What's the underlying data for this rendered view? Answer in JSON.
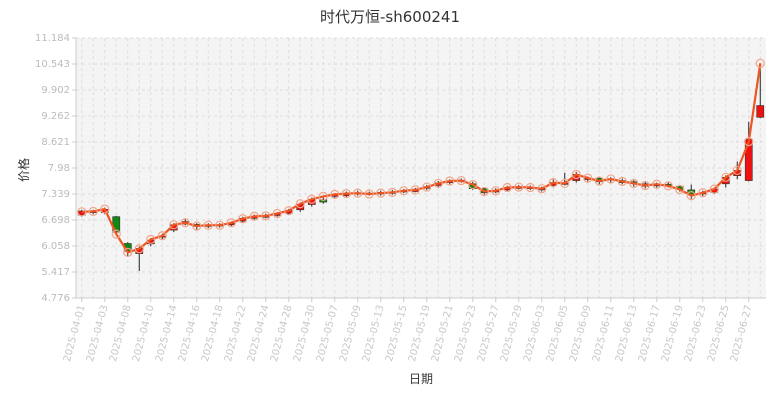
{
  "chart_data": {
    "type": "candlestick",
    "title": "时代万恒-sh600241",
    "xlabel": "日期",
    "ylabel": "价格",
    "ylim": [
      4.776,
      11.184
    ],
    "yticks": [
      "4.776",
      "5.417",
      "6.058",
      "6.698",
      "7.339",
      "7.98",
      "8.621",
      "9.262",
      "9.902",
      "10.543",
      "11.184"
    ],
    "grid": true,
    "colors": {
      "up": "#ee1111",
      "down": "#118811",
      "line": "#ee5522",
      "marker": "#f0a58a",
      "wick": "#222222",
      "grid": "#dddddd",
      "plot_bg": "#f4f4f4"
    },
    "dates": [
      "2025-04-01",
      "2025-04-02",
      "2025-04-03",
      "2025-04-07",
      "2025-04-08",
      "2025-04-09",
      "2025-04-10",
      "2025-04-11",
      "2025-04-14",
      "2025-04-15",
      "2025-04-16",
      "2025-04-17",
      "2025-04-18",
      "2025-04-21",
      "2025-04-22",
      "2025-04-23",
      "2025-04-24",
      "2025-04-25",
      "2025-04-28",
      "2025-04-29",
      "2025-04-30",
      "2025-05-06",
      "2025-05-07",
      "2025-05-08",
      "2025-05-09",
      "2025-05-12",
      "2025-05-13",
      "2025-05-14",
      "2025-05-15",
      "2025-05-16",
      "2025-05-19",
      "2025-05-20",
      "2025-05-21",
      "2025-05-22",
      "2025-05-23",
      "2025-05-26",
      "2025-05-27",
      "2025-05-28",
      "2025-05-29",
      "2025-05-30",
      "2025-06-03",
      "2025-06-04",
      "2025-06-05",
      "2025-06-06",
      "2025-06-09",
      "2025-06-10",
      "2025-06-11",
      "2025-06-12",
      "2025-06-13",
      "2025-06-16",
      "2025-06-17",
      "2025-06-18",
      "2025-06-19",
      "2025-06-20",
      "2025-06-23",
      "2025-06-24",
      "2025-06-25",
      "2025-06-26",
      "2025-06-27",
      "2025-06-30"
    ],
    "xtick_labels": [
      "2025-04-01",
      "2025-04-03",
      "2025-04-08",
      "2025-04-10",
      "2025-04-14",
      "2025-04-16",
      "2025-04-18",
      "2025-04-22",
      "2025-04-24",
      "2025-04-28",
      "2025-04-30",
      "2025-05-07",
      "2025-05-09",
      "2025-05-13",
      "2025-05-15",
      "2025-05-19",
      "2025-05-21",
      "2025-05-23",
      "2025-05-27",
      "2025-05-29",
      "2025-06-03",
      "2025-06-05",
      "2025-06-09",
      "2025-06-11",
      "2025-06-13",
      "2025-06-17",
      "2025-06-19",
      "2025-06-23",
      "2025-06-25",
      "2025-06-27"
    ],
    "open": [
      6.82,
      6.88,
      6.88,
      6.78,
      6.12,
      5.87,
      6.11,
      6.28,
      6.45,
      6.6,
      6.59,
      6.54,
      6.55,
      6.58,
      6.67,
      6.74,
      6.79,
      6.81,
      6.86,
      6.95,
      7.08,
      7.2,
      7.28,
      7.3,
      7.34,
      7.36,
      7.34,
      7.36,
      7.39,
      7.4,
      7.48,
      7.55,
      7.62,
      7.66,
      7.59,
      7.47,
      7.39,
      7.44,
      7.49,
      7.5,
      7.44,
      7.55,
      7.6,
      7.67,
      7.71,
      7.73,
      7.69,
      7.67,
      7.64,
      7.59,
      7.54,
      7.58,
      7.53,
      7.44,
      7.34,
      7.38,
      7.59,
      7.79,
      7.67,
      9.23
    ],
    "close": [
      6.92,
      6.91,
      6.96,
      6.4,
      5.93,
      6.0,
      6.2,
      6.3,
      6.58,
      6.66,
      6.54,
      6.58,
      6.58,
      6.62,
      6.74,
      6.79,
      6.79,
      6.85,
      6.93,
      7.09,
      7.2,
      7.14,
      7.33,
      7.35,
      7.36,
      7.35,
      7.38,
      7.38,
      7.42,
      7.44,
      7.52,
      7.61,
      7.66,
      7.68,
      7.47,
      7.37,
      7.42,
      7.49,
      7.5,
      7.47,
      7.47,
      7.62,
      7.6,
      7.82,
      7.72,
      7.64,
      7.71,
      7.62,
      7.6,
      7.53,
      7.58,
      7.54,
      7.46,
      7.32,
      7.37,
      7.46,
      7.75,
      7.92,
      8.69,
      9.52
    ],
    "high": [
      6.95,
      6.95,
      7.0,
      6.8,
      6.15,
      6.05,
      6.25,
      6.36,
      6.62,
      6.72,
      6.62,
      6.62,
      6.62,
      6.66,
      6.78,
      6.83,
      6.85,
      6.89,
      6.97,
      7.12,
      7.25,
      7.25,
      7.36,
      7.4,
      7.42,
      7.4,
      7.42,
      7.44,
      7.46,
      7.49,
      7.56,
      7.66,
      7.7,
      7.72,
      7.64,
      7.5,
      7.48,
      7.54,
      7.56,
      7.55,
      7.52,
      7.7,
      7.86,
      7.88,
      7.77,
      7.76,
      7.75,
      7.72,
      7.68,
      7.64,
      7.62,
      7.64,
      7.56,
      7.57,
      7.42,
      7.5,
      7.8,
      8.14,
      9.12,
      10.49
    ],
    "low": [
      6.78,
      6.84,
      6.84,
      6.34,
      5.8,
      5.44,
      6.05,
      6.22,
      6.4,
      6.57,
      6.46,
      6.5,
      6.51,
      6.55,
      6.63,
      6.7,
      6.74,
      6.78,
      6.82,
      6.9,
      7.03,
      7.1,
      7.22,
      7.26,
      7.3,
      7.3,
      7.3,
      7.32,
      7.36,
      7.38,
      7.44,
      7.5,
      7.58,
      7.62,
      7.44,
      7.33,
      7.36,
      7.4,
      7.45,
      7.44,
      7.4,
      7.5,
      7.55,
      7.62,
      7.65,
      7.58,
      7.62,
      7.58,
      7.52,
      7.48,
      7.5,
      7.5,
      7.4,
      7.22,
      7.28,
      7.34,
      7.5,
      7.7,
      7.65,
      9.21
    ],
    "line": [
      6.9,
      6.91,
      6.97,
      6.35,
      5.9,
      5.99,
      6.22,
      6.31,
      6.58,
      6.63,
      6.55,
      6.57,
      6.57,
      6.63,
      6.73,
      6.79,
      6.8,
      6.86,
      6.93,
      7.1,
      7.21,
      7.28,
      7.33,
      7.35,
      7.36,
      7.34,
      7.36,
      7.38,
      7.42,
      7.44,
      7.51,
      7.6,
      7.66,
      7.67,
      7.57,
      7.4,
      7.42,
      7.5,
      7.51,
      7.5,
      7.47,
      7.62,
      7.6,
      7.82,
      7.73,
      7.66,
      7.71,
      7.65,
      7.6,
      7.55,
      7.58,
      7.54,
      7.45,
      7.3,
      7.37,
      7.46,
      7.75,
      7.92,
      8.63,
      10.56
    ]
  }
}
